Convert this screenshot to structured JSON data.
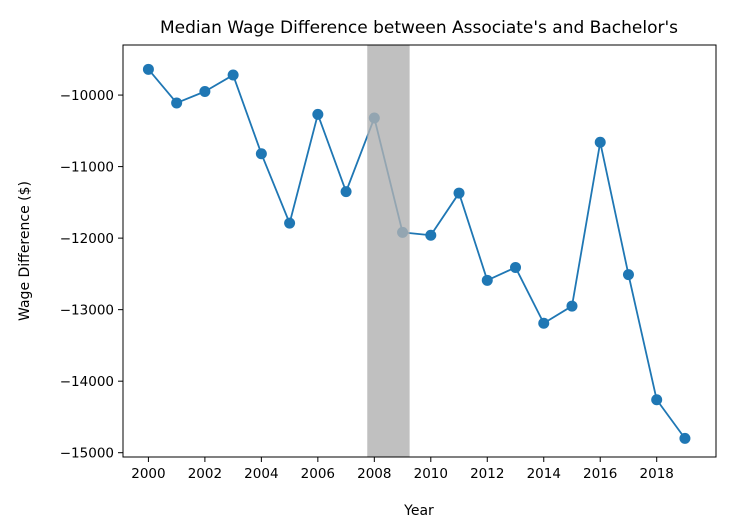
{
  "chart_data": {
    "type": "line",
    "title": "Median Wage Difference between Associate's and Bachelor's",
    "xlabel": "Year",
    "ylabel": "Wage Difference ($)",
    "x": [
      2000,
      2001,
      2002,
      2003,
      2004,
      2005,
      2006,
      2007,
      2008,
      2009,
      2010,
      2011,
      2012,
      2013,
      2014,
      2015,
      2016,
      2017,
      2018,
      2019
    ],
    "series": [
      {
        "values": [
          -9640,
          -10110,
          -9950,
          -9720,
          -10820,
          -11790,
          -10270,
          -11350,
          -10320,
          -11920,
          -11960,
          -11370,
          -12590,
          -12410,
          -13190,
          -12950,
          -10660,
          -12510,
          -14260,
          -14800
        ],
        "color": "#1f77b4"
      }
    ],
    "xlim": [
      1999.1,
      2020.1
    ],
    "ylim": [
      -15060,
      -9300
    ],
    "x_ticks": [
      2000,
      2002,
      2004,
      2006,
      2008,
      2010,
      2012,
      2014,
      2016,
      2018
    ],
    "y_ticks": [
      -15000,
      -14000,
      -13000,
      -12000,
      -11000,
      -10000
    ],
    "shaded_region": {
      "x_start": 2007.75,
      "x_end": 2009.25,
      "color": "#b0b0b0",
      "opacity": 0.8
    },
    "grid": false
  }
}
